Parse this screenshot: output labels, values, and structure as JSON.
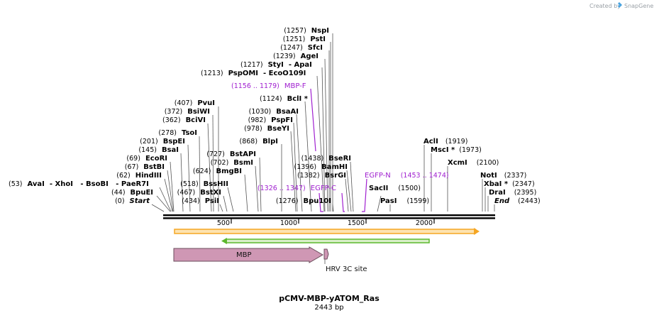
{
  "credit": {
    "prefix": "Created by",
    "brand": "SnapGene"
  },
  "plasmid": {
    "name": "pCMV-MBP-yATOM_Ras",
    "length_label": "2443 bp"
  },
  "ruler": {
    "ticks": [
      "500",
      "1000",
      "1500",
      "2000"
    ]
  },
  "sites": {
    "s1257": {
      "pos": "(1257)",
      "name": "NspI"
    },
    "s1251": {
      "pos": "(1251)",
      "name": "PstI"
    },
    "s1247": {
      "pos": "(1247)",
      "name": "SfcI"
    },
    "s1239": {
      "pos": "(1239)",
      "name": "AgeI"
    },
    "s1217": {
      "pos": "(1217)",
      "name": "StyI",
      "extra": "- ApaI"
    },
    "s1213": {
      "pos": "(1213)",
      "name": "PspOMI",
      "extra": "- EcoO109I"
    },
    "s1124": {
      "pos": "(1124)",
      "name": "BclI *"
    },
    "s1030": {
      "pos": "(1030)",
      "name": "BsaAI"
    },
    "s982": {
      "pos": "(982)",
      "name": "PspFI"
    },
    "s978": {
      "pos": "(978)",
      "name": "BseYI"
    },
    "s868": {
      "pos": "(868)",
      "name": "BlpI"
    },
    "s407": {
      "pos": "(407)",
      "name": "PvuI"
    },
    "s372": {
      "pos": "(372)",
      "name": "BsiWI"
    },
    "s362": {
      "pos": "(362)",
      "name": "BciVI"
    },
    "s278": {
      "pos": "(278)",
      "name": "TsoI"
    },
    "s201": {
      "pos": "(201)",
      "name": "BspEI"
    },
    "s145": {
      "pos": "(145)",
      "name": "BsaI"
    },
    "s69": {
      "pos": "(69)",
      "name": "EcoRI"
    },
    "s67": {
      "pos": "(67)",
      "name": "BstBI"
    },
    "s62": {
      "pos": "(62)",
      "name": "HindIII"
    },
    "s53": {
      "pos": "(53)",
      "name": "AvaI",
      "extra": "- XhoI   - BsoBI   - PaeR7I"
    },
    "s44": {
      "pos": "(44)",
      "name": "BpuEI"
    },
    "s0": {
      "pos": "(0)",
      "name": "Start"
    },
    "s727": {
      "pos": "(727)",
      "name": "BstAPI"
    },
    "s702": {
      "pos": "(702)",
      "name": "BsmI"
    },
    "s624": {
      "pos": "(624)",
      "name": "BmgBI"
    },
    "s518": {
      "pos": "(518)",
      "name": "BssHII"
    },
    "s467": {
      "pos": "(467)",
      "name": "BstXI"
    },
    "s434": {
      "pos": "(434)",
      "name": "PsiI"
    },
    "s1438": {
      "pos": "(1438)",
      "name": "BseRI"
    },
    "s1396": {
      "pos": "(1396)",
      "name": "BamHI"
    },
    "s1382": {
      "pos": "(1382)",
      "name": "BsrGI"
    },
    "s1276": {
      "pos": "(1276)",
      "name": "Bpu10I"
    },
    "s1919": {
      "pos": "(1919)",
      "name": "AclI"
    },
    "s1973": {
      "pos": "(1973)",
      "name": "MscI *"
    },
    "s2100": {
      "pos": "(2100)",
      "name": "XcmI"
    },
    "s1500": {
      "pos": "(1500)",
      "name": "SacII"
    },
    "s1599": {
      "pos": "(1599)",
      "name": "PasI"
    },
    "s2337": {
      "pos": "(2337)",
      "name": "NotI"
    },
    "s2347": {
      "pos": "(2347)",
      "name": "XbaI *"
    },
    "s2395": {
      "pos": "(2395)",
      "name": "DraI"
    },
    "s2443": {
      "pos": "(2443)",
      "name": "End"
    }
  },
  "primers": {
    "mbpf": {
      "range": "(1156 .. 1179)",
      "name": "MBP-F"
    },
    "egfpc": {
      "range": "(1326 .. 1347)",
      "name": "EGFP-C"
    },
    "egfpn": {
      "range": "(1453 .. 1474)",
      "name": "EGFP-N"
    }
  },
  "features": {
    "mbp": "MBP",
    "hrv": "HRV 3C site"
  },
  "colors": {
    "orange_bar": "#f5a623",
    "orange_fill": "#fde3b0",
    "green_bar": "#5cb82e",
    "green_fill": "#d8efc8",
    "mbp_fill": "#cf97b4",
    "mbp_stroke": "#6b4d5c",
    "primer": "#a020d0"
  }
}
